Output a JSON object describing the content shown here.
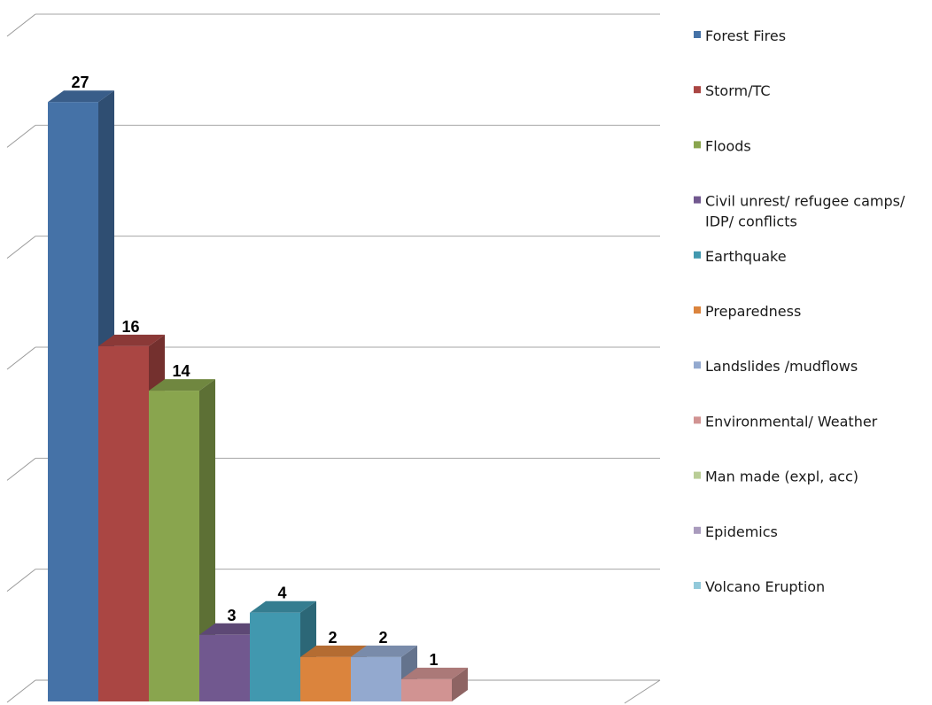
{
  "chart_data": {
    "type": "bar",
    "style": "3d-column",
    "grid": true,
    "legend_position": "right",
    "categories": [
      "Forest Fires",
      "Storm/TC",
      "Floods",
      "Civil unrest/ refugee camps/ IDP/ conflicts",
      "Earthquake",
      "Preparedness",
      "Landslides /mudflows",
      "Environmental/ Weather",
      "Man made (expl, acc)",
      "Epidemics",
      "Volcano Eruption"
    ],
    "legend_lines": [
      [
        "Forest Fires"
      ],
      [
        "Storm/TC"
      ],
      [
        "Floods"
      ],
      [
        "Civil unrest/ refugee camps/",
        "IDP/ conflicts"
      ],
      [
        "Earthquake"
      ],
      [
        "Preparedness"
      ],
      [
        "Landslides /mudflows"
      ],
      [
        "Environmental/ Weather"
      ],
      [
        "Man made (expl, acc)"
      ],
      [
        "Epidemics"
      ],
      [
        "Volcano Eruption"
      ]
    ],
    "values": [
      27,
      16,
      14,
      3,
      4,
      2,
      2,
      1,
      0,
      0,
      0
    ],
    "colors": [
      "#4572a7",
      "#aa4643",
      "#89a54e",
      "#71588f",
      "#4198af",
      "#db843d",
      "#93a9cf",
      "#d19392",
      "#b9cd96",
      "#a99bbd",
      "#92c9da"
    ],
    "ylim": [
      0,
      30
    ],
    "title": "",
    "xlabel": "",
    "ylabel": ""
  }
}
